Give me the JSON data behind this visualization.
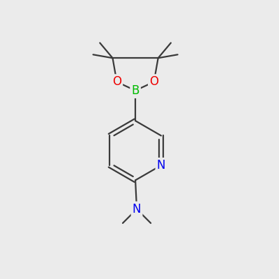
{
  "background_color": "#ebebeb",
  "bond_color": "#3a3a3a",
  "boron_color": "#00bb00",
  "oxygen_color": "#ee0000",
  "nitrogen_color": "#0000ee",
  "carbon_color": "#3a3a3a",
  "figsize": [
    4.0,
    4.0
  ],
  "dpi": 100,
  "xlim": [
    0,
    10
  ],
  "ylim": [
    0,
    10
  ]
}
